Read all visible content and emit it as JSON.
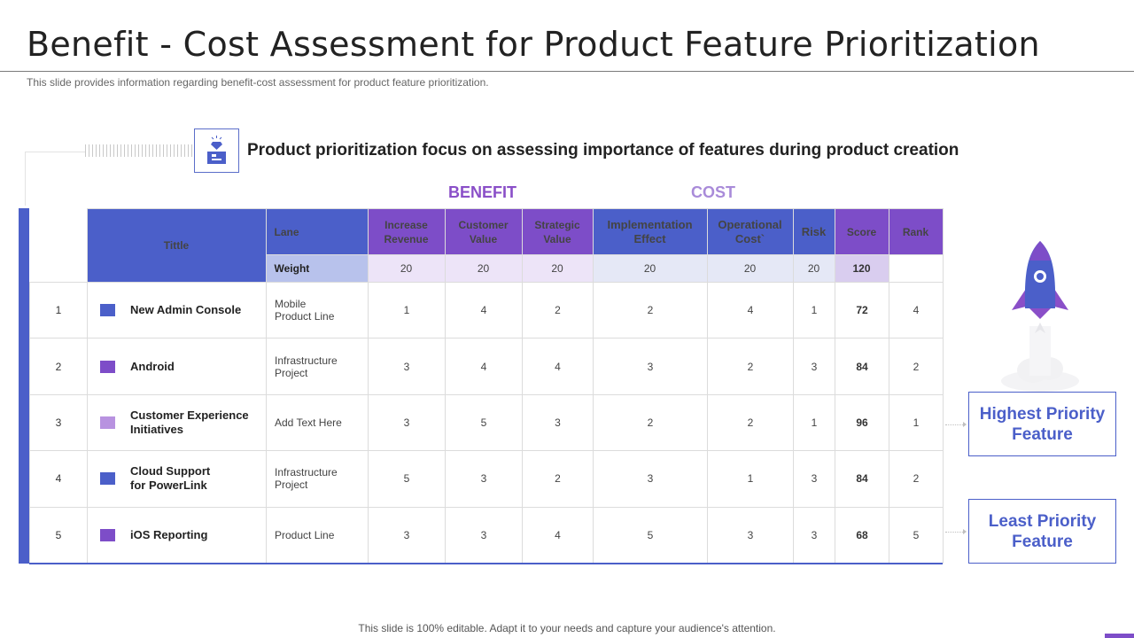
{
  "title": "Benefit - Cost Assessment for Product Feature Prioritization",
  "subtitle": "This slide provides information regarding benefit-cost assessment for product feature prioritization.",
  "headline": "Product prioritization focus on assessing importance of features during product creation",
  "icon": "diamond-pedestal-icon",
  "group_labels": {
    "benefit": "BENEFIT",
    "cost": "COST"
  },
  "colors": {
    "blue": "#4b5fc9",
    "purple": "#7d4dc8",
    "lavender": "#b892e0"
  },
  "table": {
    "headers": {
      "title": "Tittle",
      "lane": "Lane",
      "columns": [
        "Increase Revenue",
        "Customer Value",
        "Strategic Value",
        "Implementation Effect",
        "Operational Cost`",
        "Risk",
        "Score",
        "Rank"
      ]
    },
    "weight_row": {
      "label": "Weight",
      "values": [
        "20",
        "20",
        "20",
        "20",
        "20",
        "20",
        "120",
        ""
      ]
    },
    "rows": [
      {
        "num": "1",
        "title": "New Admin Console",
        "swatch": "#4b5fc9",
        "lane": "Mobile Product Line",
        "values": [
          "1",
          "4",
          "2",
          "2",
          "4",
          "1",
          "72",
          "4"
        ]
      },
      {
        "num": "2",
        "title": "Android",
        "swatch": "#7d4dc8",
        "lane": "Infrastructure Project",
        "values": [
          "3",
          "4",
          "4",
          "3",
          "2",
          "3",
          "84",
          "2"
        ]
      },
      {
        "num": "3",
        "title": "Customer Experience Initiatives",
        "swatch": "#b892e0",
        "lane": "Add Text Here",
        "values": [
          "3",
          "5",
          "3",
          "2",
          "2",
          "1",
          "96",
          "1"
        ]
      },
      {
        "num": "4",
        "title": "Cloud Support for PowerLink",
        "swatch": "#4b5fc9",
        "lane": "Infrastructure Project",
        "values": [
          "5",
          "3",
          "2",
          "3",
          "1",
          "3",
          "84",
          "2"
        ]
      },
      {
        "num": "5",
        "title": "iOS Reporting",
        "swatch": "#7d4dc8",
        "lane": "Product Line",
        "values": [
          "3",
          "3",
          "4",
          "5",
          "3",
          "3",
          "68",
          "5"
        ]
      }
    ]
  },
  "callouts": {
    "highest": "Highest Priority Feature",
    "least": "Least Priority Feature"
  },
  "footer": "This slide is 100% editable. Adapt it to your needs and capture your audience's attention."
}
